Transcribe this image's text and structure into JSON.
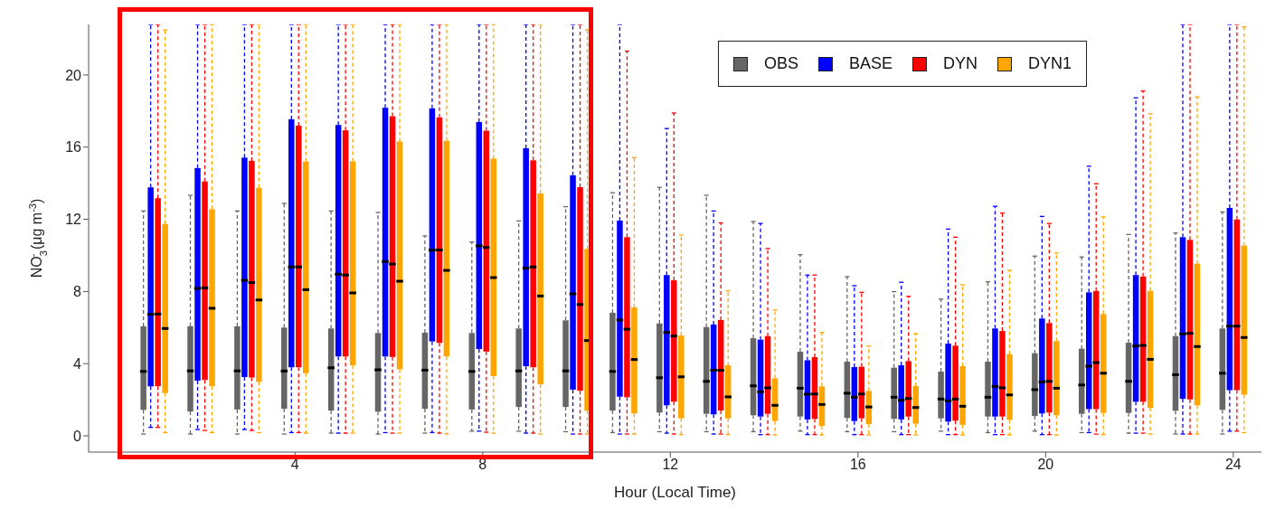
{
  "chart_data": {
    "type": "box",
    "x": [
      1,
      2,
      3,
      4,
      5,
      6,
      7,
      8,
      9,
      10,
      11,
      12,
      13,
      14,
      15,
      16,
      17,
      18,
      19,
      20,
      21,
      22,
      23,
      24
    ],
    "xlim": [
      -0.4,
      24.6
    ],
    "xticks": [
      4,
      8,
      12,
      16,
      20,
      24
    ],
    "ylim": [
      -0.9,
      22.8
    ],
    "yticks": [
      0,
      4,
      8,
      12,
      16,
      20
    ],
    "xlabel": "Hour (Local Time)",
    "ylabel": "NO$_{3}$$^{-}$  (μg m$^{-3}$)",
    "legend": "top right",
    "line_style": "dashed",
    "series": [
      {
        "name": "OBS",
        "color": "#666666",
        "boxes": [
          {
            "low": 0.1,
            "q1": 1.44,
            "median": 3.57,
            "q3": 6.07,
            "high": 12.46
          },
          {
            "low": 0.1,
            "q1": 1.35,
            "median": 3.6,
            "q3": 6.08,
            "high": 13.33
          },
          {
            "low": 0.1,
            "q1": 1.46,
            "median": 3.6,
            "q3": 6.07,
            "high": 12.46
          },
          {
            "low": 0.1,
            "q1": 1.5,
            "median": 3.59,
            "q3": 6.0,
            "high": 12.88
          },
          {
            "low": 0.15,
            "q1": 1.4,
            "median": 3.77,
            "q3": 5.95,
            "high": 12.46
          },
          {
            "low": 0.1,
            "q1": 1.34,
            "median": 3.66,
            "q3": 5.7,
            "high": 12.38
          },
          {
            "low": 0.15,
            "q1": 1.5,
            "median": 3.64,
            "q3": 5.72,
            "high": 11.08
          },
          {
            "low": 0.26,
            "q1": 1.46,
            "median": 3.57,
            "q3": 5.7,
            "high": 10.74
          },
          {
            "low": 0.26,
            "q1": 1.6,
            "median": 3.6,
            "q3": 5.95,
            "high": 11.91
          },
          {
            "low": 0.23,
            "q1": 1.6,
            "median": 3.6,
            "q3": 6.4,
            "high": 12.7
          },
          {
            "low": 0.18,
            "q1": 1.4,
            "median": 3.57,
            "q3": 6.82,
            "high": 13.47
          },
          {
            "low": 0.23,
            "q1": 1.29,
            "median": 3.22,
            "q3": 6.23,
            "high": 13.77
          },
          {
            "low": 0.23,
            "q1": 1.22,
            "median": 3.02,
            "q3": 6.03,
            "high": 13.33
          },
          {
            "low": 0.23,
            "q1": 1.14,
            "median": 2.77,
            "q3": 5.41,
            "high": 11.88
          },
          {
            "low": 0.26,
            "q1": 1.07,
            "median": 2.64,
            "q3": 4.66,
            "high": 10.04
          },
          {
            "low": 0.23,
            "q1": 0.99,
            "median": 2.36,
            "q3": 4.11,
            "high": 8.82
          },
          {
            "low": 0.23,
            "q1": 0.94,
            "median": 2.14,
            "q3": 3.78,
            "high": 7.99
          },
          {
            "low": 0.26,
            "q1": 0.97,
            "median": 2.04,
            "q3": 3.56,
            "high": 7.58
          },
          {
            "low": 0.18,
            "q1": 1.07,
            "median": 2.14,
            "q3": 4.11,
            "high": 8.54
          },
          {
            "low": 0.26,
            "q1": 1.1,
            "median": 2.56,
            "q3": 4.58,
            "high": 9.96
          },
          {
            "low": 0.18,
            "q1": 1.22,
            "median": 2.82,
            "q3": 4.83,
            "high": 9.91
          },
          {
            "low": 0.15,
            "q1": 1.27,
            "median": 3.02,
            "q3": 5.16,
            "high": 11.16
          },
          {
            "low": 0.1,
            "q1": 1.39,
            "median": 3.39,
            "q3": 5.53,
            "high": 11.24
          },
          {
            "low": 0.1,
            "q1": 1.44,
            "median": 3.47,
            "q3": 5.95,
            "high": 12.41
          }
        ]
      },
      {
        "name": "BASE",
        "color": "#0000ff",
        "boxes": [
          {
            "low": 0.47,
            "q1": 2.74,
            "median": 6.73,
            "q3": 13.77,
            "high": 22.8
          },
          {
            "low": 0.35,
            "q1": 3.06,
            "median": 8.17,
            "q3": 14.84,
            "high": 22.8
          },
          {
            "low": 0.35,
            "q1": 3.26,
            "median": 8.62,
            "q3": 15.42,
            "high": 22.8
          },
          {
            "low": 0.18,
            "q1": 3.8,
            "median": 9.36,
            "q3": 17.54,
            "high": 22.8
          },
          {
            "low": 0.15,
            "q1": 4.4,
            "median": 8.96,
            "q3": 17.23,
            "high": 22.8
          },
          {
            "low": 0.18,
            "q1": 4.4,
            "median": 9.66,
            "q3": 18.18,
            "high": 22.8
          },
          {
            "low": 0.18,
            "q1": 5.23,
            "median": 10.29,
            "q3": 18.15,
            "high": 22.8
          },
          {
            "low": 0.26,
            "q1": 4.81,
            "median": 10.53,
            "q3": 17.39,
            "high": 22.8
          },
          {
            "low": 0.15,
            "q1": 3.86,
            "median": 9.29,
            "q3": 15.94,
            "high": 22.8
          },
          {
            "low": 0.1,
            "q1": 2.56,
            "median": 7.87,
            "q3": 14.44,
            "high": 22.8
          },
          {
            "low": 0.1,
            "q1": 2.17,
            "median": 6.42,
            "q3": 11.93,
            "high": 22.8
          },
          {
            "low": 0.15,
            "q1": 1.69,
            "median": 5.73,
            "q3": 8.91,
            "high": 17.03
          },
          {
            "low": 0.1,
            "q1": 1.19,
            "median": 3.64,
            "q3": 6.17,
            "high": 12.46
          },
          {
            "low": 0.07,
            "q1": 1.07,
            "median": 2.44,
            "q3": 5.33,
            "high": 11.77
          },
          {
            "low": 0.07,
            "q1": 0.91,
            "median": 2.31,
            "q3": 4.19,
            "high": 8.91
          },
          {
            "low": 0.07,
            "q1": 0.82,
            "median": 2.14,
            "q3": 3.81,
            "high": 8.32
          },
          {
            "low": 0.07,
            "q1": 0.91,
            "median": 1.97,
            "q3": 3.91,
            "high": 8.51
          },
          {
            "low": 0.07,
            "q1": 0.79,
            "median": 1.94,
            "q3": 5.11,
            "high": 11.46
          },
          {
            "low": 0.07,
            "q1": 1.07,
            "median": 2.74,
            "q3": 5.95,
            "high": 12.72
          },
          {
            "low": 0.07,
            "q1": 1.24,
            "median": 2.99,
            "q3": 6.5,
            "high": 12.16
          },
          {
            "low": 0.18,
            "q1": 1.48,
            "median": 3.86,
            "q3": 7.95,
            "high": 14.94
          },
          {
            "low": 0.15,
            "q1": 1.89,
            "median": 4.98,
            "q3": 8.91,
            "high": 18.73
          },
          {
            "low": 0.1,
            "q1": 2.05,
            "median": 5.65,
            "q3": 11.01,
            "high": 22.8
          },
          {
            "low": 0.26,
            "q1": 2.53,
            "median": 6.08,
            "q3": 12.63,
            "high": 22.8
          }
        ]
      },
      {
        "name": "DYN",
        "color": "#ff0000",
        "boxes": [
          {
            "low": 0.47,
            "q1": 2.75,
            "median": 6.75,
            "q3": 13.17,
            "high": 22.8
          },
          {
            "low": 0.3,
            "q1": 3.1,
            "median": 8.2,
            "q3": 14.1,
            "high": 22.8
          },
          {
            "low": 0.3,
            "q1": 3.23,
            "median": 8.49,
            "q3": 15.24,
            "high": 22.8
          },
          {
            "low": 0.18,
            "q1": 3.8,
            "median": 9.36,
            "q3": 17.19,
            "high": 22.8
          },
          {
            "low": 0.15,
            "q1": 4.4,
            "median": 8.91,
            "q3": 16.93,
            "high": 22.8
          },
          {
            "low": 0.15,
            "q1": 4.37,
            "median": 9.52,
            "q3": 17.71,
            "high": 22.8
          },
          {
            "low": 0.15,
            "q1": 5.15,
            "median": 10.3,
            "q3": 17.65,
            "high": 22.8
          },
          {
            "low": 0.2,
            "q1": 4.67,
            "median": 10.44,
            "q3": 16.91,
            "high": 22.8
          },
          {
            "low": 0.15,
            "q1": 3.8,
            "median": 9.36,
            "q3": 15.27,
            "high": 22.8
          },
          {
            "low": 0.1,
            "q1": 2.5,
            "median": 7.28,
            "q3": 13.78,
            "high": 22.8
          },
          {
            "low": 0.1,
            "q1": 2.14,
            "median": 5.91,
            "q3": 11.01,
            "high": 21.32
          },
          {
            "low": 0.1,
            "q1": 1.89,
            "median": 5.53,
            "q3": 8.62,
            "high": 17.89
          },
          {
            "low": 0.1,
            "q1": 1.4,
            "median": 3.63,
            "q3": 6.42,
            "high": 11.8
          },
          {
            "low": 0.07,
            "q1": 1.22,
            "median": 2.66,
            "q3": 5.53,
            "high": 10.38
          },
          {
            "low": 0.07,
            "q1": 0.94,
            "median": 2.32,
            "q3": 4.36,
            "high": 8.91
          },
          {
            "low": 0.07,
            "q1": 0.97,
            "median": 2.32,
            "q3": 3.83,
            "high": 7.95
          },
          {
            "low": 0.07,
            "q1": 1.07,
            "median": 2.07,
            "q3": 4.14,
            "high": 7.73
          },
          {
            "low": 0.07,
            "q1": 0.84,
            "median": 2.04,
            "q3": 5.0,
            "high": 11.01
          },
          {
            "low": 0.07,
            "q1": 1.07,
            "median": 2.66,
            "q3": 5.81,
            "high": 12.35
          },
          {
            "low": 0.07,
            "q1": 1.29,
            "median": 3.02,
            "q3": 6.25,
            "high": 11.77
          },
          {
            "low": 0.1,
            "q1": 1.48,
            "median": 4.06,
            "q3": 8.03,
            "high": 13.97
          },
          {
            "low": 0.15,
            "q1": 1.89,
            "median": 5.01,
            "q3": 8.83,
            "high": 19.11
          },
          {
            "low": 0.1,
            "q1": 2.02,
            "median": 5.68,
            "q3": 10.86,
            "high": 22.8
          },
          {
            "low": 0.26,
            "q1": 2.53,
            "median": 6.08,
            "q3": 11.99,
            "high": 22.8
          }
        ]
      },
      {
        "name": "DYN1",
        "color": "#ffa500",
        "boxes": [
          {
            "low": 0.18,
            "q1": 2.37,
            "median": 5.95,
            "q3": 11.74,
            "high": 22.49
          },
          {
            "low": 0.18,
            "q1": 2.75,
            "median": 7.07,
            "q3": 12.56,
            "high": 22.8
          },
          {
            "low": 0.18,
            "q1": 2.99,
            "median": 7.53,
            "q3": 13.75,
            "high": 22.8
          },
          {
            "low": 0.15,
            "q1": 3.47,
            "median": 8.1,
            "q3": 15.2,
            "high": 22.8
          },
          {
            "low": 0.15,
            "q1": 3.9,
            "median": 7.92,
            "q3": 15.21,
            "high": 22.8
          },
          {
            "low": 0.15,
            "q1": 3.69,
            "median": 8.57,
            "q3": 16.31,
            "high": 22.8
          },
          {
            "low": 0.1,
            "q1": 4.4,
            "median": 9.17,
            "q3": 16.35,
            "high": 22.8
          },
          {
            "low": 0.15,
            "q1": 3.31,
            "median": 8.77,
            "q3": 15.36,
            "high": 22.8
          },
          {
            "low": 0.1,
            "q1": 2.86,
            "median": 7.75,
            "q3": 13.43,
            "high": 22.8
          },
          {
            "low": 0.1,
            "q1": 1.39,
            "median": 5.28,
            "q3": 10.36,
            "high": 22.5
          },
          {
            "low": 0.1,
            "q1": 1.24,
            "median": 4.23,
            "q3": 7.12,
            "high": 15.42
          },
          {
            "low": 0.07,
            "q1": 0.97,
            "median": 3.27,
            "q3": 5.56,
            "high": 11.13
          },
          {
            "low": 0.07,
            "q1": 0.97,
            "median": 2.16,
            "q3": 3.91,
            "high": 8.04
          },
          {
            "low": 0.05,
            "q1": 0.82,
            "median": 1.69,
            "q3": 3.19,
            "high": 6.98
          },
          {
            "low": 0.05,
            "q1": 0.55,
            "median": 1.74,
            "q3": 2.74,
            "high": 5.73
          },
          {
            "low": 0.05,
            "q1": 0.65,
            "median": 1.6,
            "q3": 2.49,
            "high": 4.98
          },
          {
            "low": 0.05,
            "q1": 0.67,
            "median": 1.57,
            "q3": 2.76,
            "high": 5.66
          },
          {
            "low": 0.05,
            "q1": 0.61,
            "median": 1.64,
            "q3": 3.86,
            "high": 8.37
          },
          {
            "low": 0.05,
            "q1": 0.89,
            "median": 2.27,
            "q3": 4.53,
            "high": 9.17
          },
          {
            "low": 0.05,
            "q1": 1.14,
            "median": 2.64,
            "q3": 5.25,
            "high": 10.13
          },
          {
            "low": 0.07,
            "q1": 1.27,
            "median": 3.47,
            "q3": 6.75,
            "high": 12.13
          },
          {
            "low": 0.1,
            "q1": 1.55,
            "median": 4.24,
            "q3": 8.03,
            "high": 17.84
          },
          {
            "low": 0.1,
            "q1": 1.69,
            "median": 4.95,
            "q3": 9.54,
            "high": 18.78
          },
          {
            "low": 0.18,
            "q1": 2.28,
            "median": 5.45,
            "q3": 10.54,
            "high": 22.66
          }
        ]
      }
    ]
  }
}
